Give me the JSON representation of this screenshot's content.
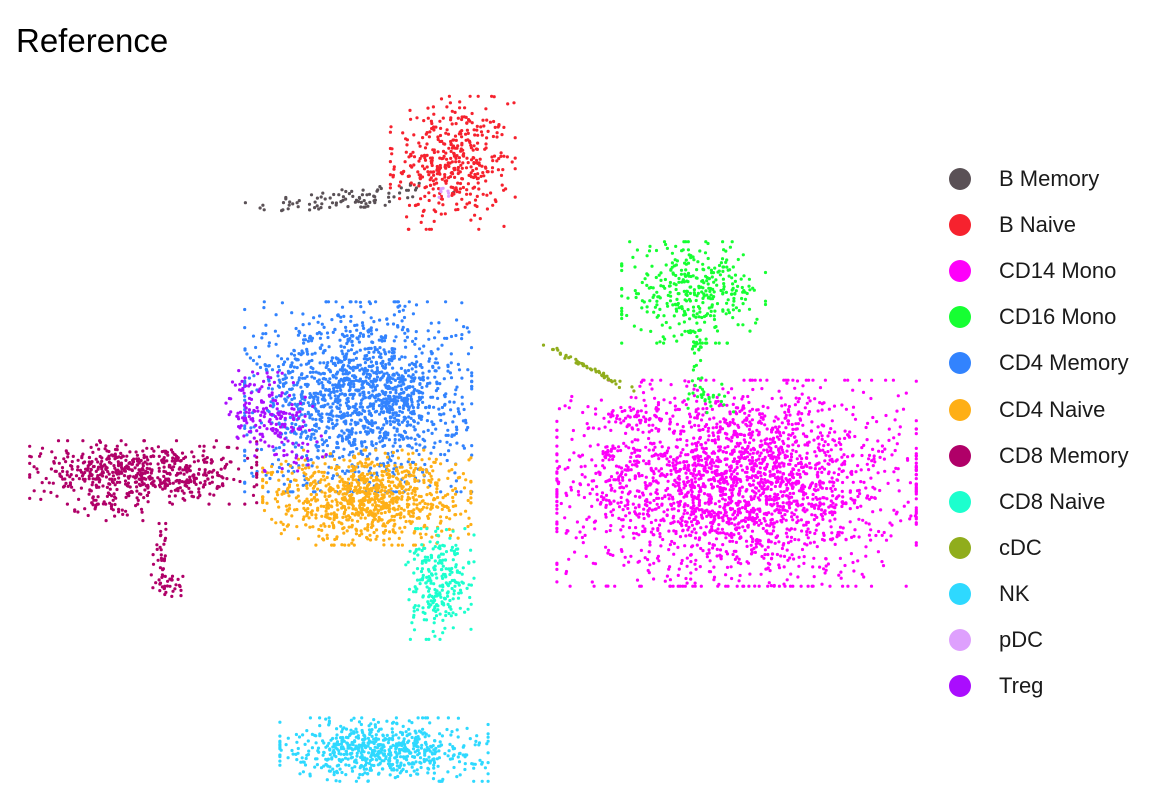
{
  "chart_data": {
    "type": "scatter",
    "title": "Reference",
    "xlabel": "",
    "ylabel": "",
    "grid": false,
    "legend_position": "right",
    "point_size": 1.6,
    "series": [
      {
        "name": "B Memory",
        "color": "#5a5156",
        "clusters": [
          {
            "cx": 3.6,
            "cy": 8.35,
            "sx": 0.55,
            "sy": 0.08,
            "n": 90,
            "tilt": 0.12
          }
        ]
      },
      {
        "name": "B Naive",
        "color": "#f6222e",
        "clusters": [
          {
            "cx": 4.8,
            "cy": 8.85,
            "sx": 0.33,
            "sy": 0.42,
            "n": 420
          }
        ]
      },
      {
        "name": "CD14 Mono",
        "color": "#fe00fa",
        "clusters": [
          {
            "cx": 8.1,
            "cy": 4.4,
            "sx": 0.95,
            "sy": 0.65,
            "n": 2400
          },
          {
            "cx": 6.9,
            "cy": 5.3,
            "sx": 0.2,
            "sy": 0.08,
            "n": 40
          },
          {
            "cx": 6.6,
            "cy": 4.8,
            "sx": 0.06,
            "sy": 0.05,
            "n": 15
          }
        ]
      },
      {
        "name": "CD16 Mono",
        "color": "#16ff32",
        "clusters": [
          {
            "cx": 7.6,
            "cy": 7.05,
            "sx": 0.38,
            "sy": 0.32,
            "n": 360
          },
          {
            "cx": 7.63,
            "cy": 6.1,
            "sx": 0.04,
            "sy": 0.3,
            "n": 25
          },
          {
            "cx": 7.8,
            "cy": 5.6,
            "sx": 0.12,
            "sy": 0.1,
            "n": 25
          }
        ]
      },
      {
        "name": "CD4 Memory",
        "color": "#3283fe",
        "clusters": [
          {
            "cx": 3.7,
            "cy": 5.6,
            "sx": 0.6,
            "sy": 0.6,
            "n": 1500
          },
          {
            "cx": 4.2,
            "cy": 5.6,
            "sx": 0.15,
            "sy": 0.2,
            "n": 80
          }
        ]
      },
      {
        "name": "CD4 Naive",
        "color": "#feaf16",
        "clusters": [
          {
            "cx": 3.8,
            "cy": 4.2,
            "sx": 0.55,
            "sy": 0.3,
            "n": 900
          }
        ]
      },
      {
        "name": "CD8 Memory",
        "color": "#b00068",
        "clusters": [
          {
            "cx": 1.2,
            "cy": 4.55,
            "sx": 0.6,
            "sy": 0.2,
            "n": 600
          },
          {
            "cx": 0.8,
            "cy": 4.1,
            "sx": 0.18,
            "sy": 0.1,
            "n": 40
          },
          {
            "cx": 1.4,
            "cy": 3.4,
            "sx": 0.05,
            "sy": 0.2,
            "n": 30
          },
          {
            "cx": 1.5,
            "cy": 2.95,
            "sx": 0.1,
            "sy": 0.08,
            "n": 30
          }
        ]
      },
      {
        "name": "CD8 Naive",
        "color": "#1cffce",
        "clusters": [
          {
            "cx": 4.65,
            "cy": 3.0,
            "sx": 0.18,
            "sy": 0.35,
            "n": 260
          }
        ]
      },
      {
        "name": "cDC",
        "color": "#90ad1c",
        "clusters": [
          {
            "cx": 6.38,
            "cy": 6.0,
            "sx": 0.28,
            "sy": 0.02,
            "n": 50,
            "tilt": -0.55
          }
        ]
      },
      {
        "name": "NK",
        "color": "#2ed9ff",
        "clusters": [
          {
            "cx": 4.0,
            "cy": 0.7,
            "sx": 0.55,
            "sy": 0.2,
            "n": 650
          }
        ]
      },
      {
        "name": "pDC",
        "color": "#dea0fd",
        "clusters": [
          {
            "cx": 4.7,
            "cy": 8.45,
            "sx": 0.05,
            "sy": 0.04,
            "n": 8
          }
        ]
      },
      {
        "name": "Treg",
        "color": "#aa0dfe",
        "clusters": [
          {
            "cx": 2.7,
            "cy": 5.3,
            "sx": 0.22,
            "sy": 0.35,
            "n": 200,
            "tilt": 0.6
          }
        ]
      }
    ],
    "xlim": [
      0,
      10
    ],
    "ylim": [
      0,
      10
    ]
  }
}
